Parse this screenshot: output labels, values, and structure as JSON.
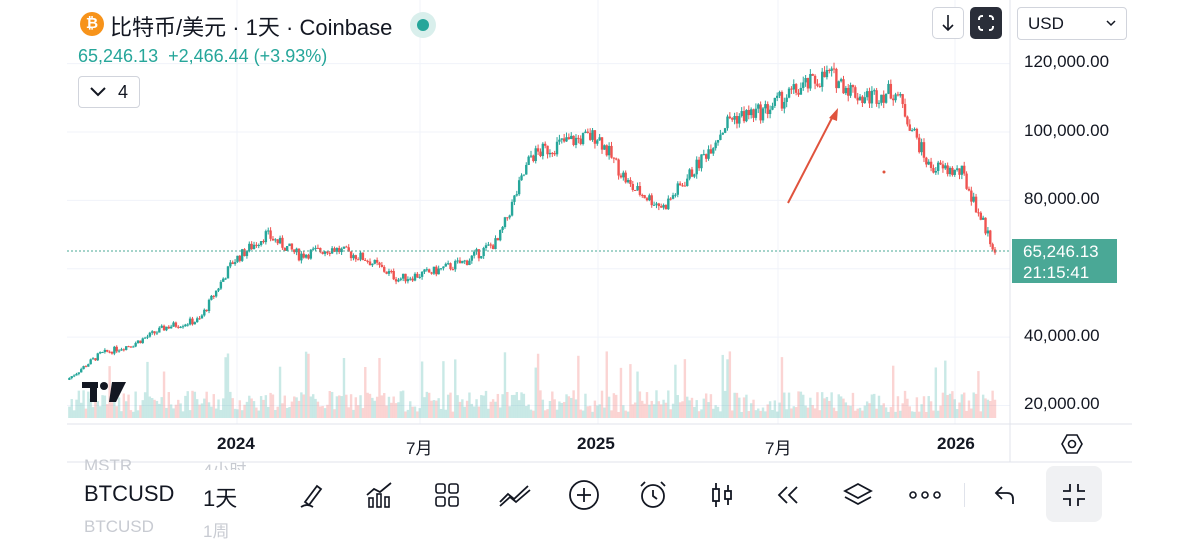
{
  "header": {
    "coin_glyph": "₿",
    "title": "比特币/美元 · 1天 · Coinbase",
    "price": "65,246.13",
    "change": "+2,466.44 (+3.93%)",
    "indicator_count": "4"
  },
  "toolbar_top": {
    "currency": "USD",
    "download_icon": "arrow-down-icon",
    "fullscreen_icon": "fullscreen-icon"
  },
  "colors": {
    "up": "#26a69a",
    "down": "#ef5350",
    "accent": "#4aa896",
    "annotation": "#e0533d"
  },
  "price_axis": {
    "labels": [
      "120,000.00",
      "100,000.00",
      "80,000.00",
      "40,000.00",
      "20,000.00"
    ],
    "current_price": "65,246.13",
    "countdown": "21:15:41"
  },
  "time_axis": {
    "labels": [
      "2024",
      "7月",
      "2025",
      "7月",
      "2026"
    ]
  },
  "bottom_toolbar": {
    "symbol": "BTCUSD",
    "interval": "1天",
    "ghost_above_symbol": "MSTR",
    "ghost_above_interval": "4小时",
    "ghost_below_symbol": "BTCUSD",
    "ghost_below_interval": "1周",
    "icons": [
      "pen-icon",
      "indicators-icon",
      "grid-icon",
      "compare-icon",
      "add-icon",
      "alarm-icon",
      "candlestick-icon",
      "replay-icon",
      "layers-icon",
      "more-icon",
      "undo-icon",
      "collapse-icon"
    ]
  },
  "chart_data": {
    "type": "candlestick",
    "symbol": "BTCUSD",
    "interval": "1D",
    "ylim": [
      15000,
      133000
    ],
    "y_ticks": [
      20000,
      40000,
      80000,
      100000,
      120000
    ],
    "x": [
      "2023-10",
      "2023-11",
      "2023-12",
      "2024-01",
      "2024-02",
      "2024-03",
      "2024-04",
      "2024-05",
      "2024-06",
      "2024-07",
      "2024-08",
      "2024-09",
      "2024-10",
      "2024-11",
      "2024-12",
      "2025-01",
      "2025-02",
      "2025-03",
      "2025-04",
      "2025-05",
      "2025-06",
      "2025-07",
      "2025-08",
      "2025-09",
      "2025-10",
      "2025-11",
      "2025-12",
      "2026-01",
      "2026-02"
    ],
    "close": [
      27500,
      35000,
      38000,
      43000,
      45000,
      62000,
      70000,
      64000,
      66000,
      63000,
      57000,
      59000,
      62000,
      68000,
      93000,
      97000,
      99000,
      84000,
      78000,
      90000,
      104000,
      106000,
      112000,
      117000,
      110000,
      112000,
      90000,
      88000,
      65246
    ],
    "current_price": 65246.13,
    "grid": true,
    "volume_shown": true,
    "annotation": "red arrow pointing up toward the mid-2025 decline"
  }
}
